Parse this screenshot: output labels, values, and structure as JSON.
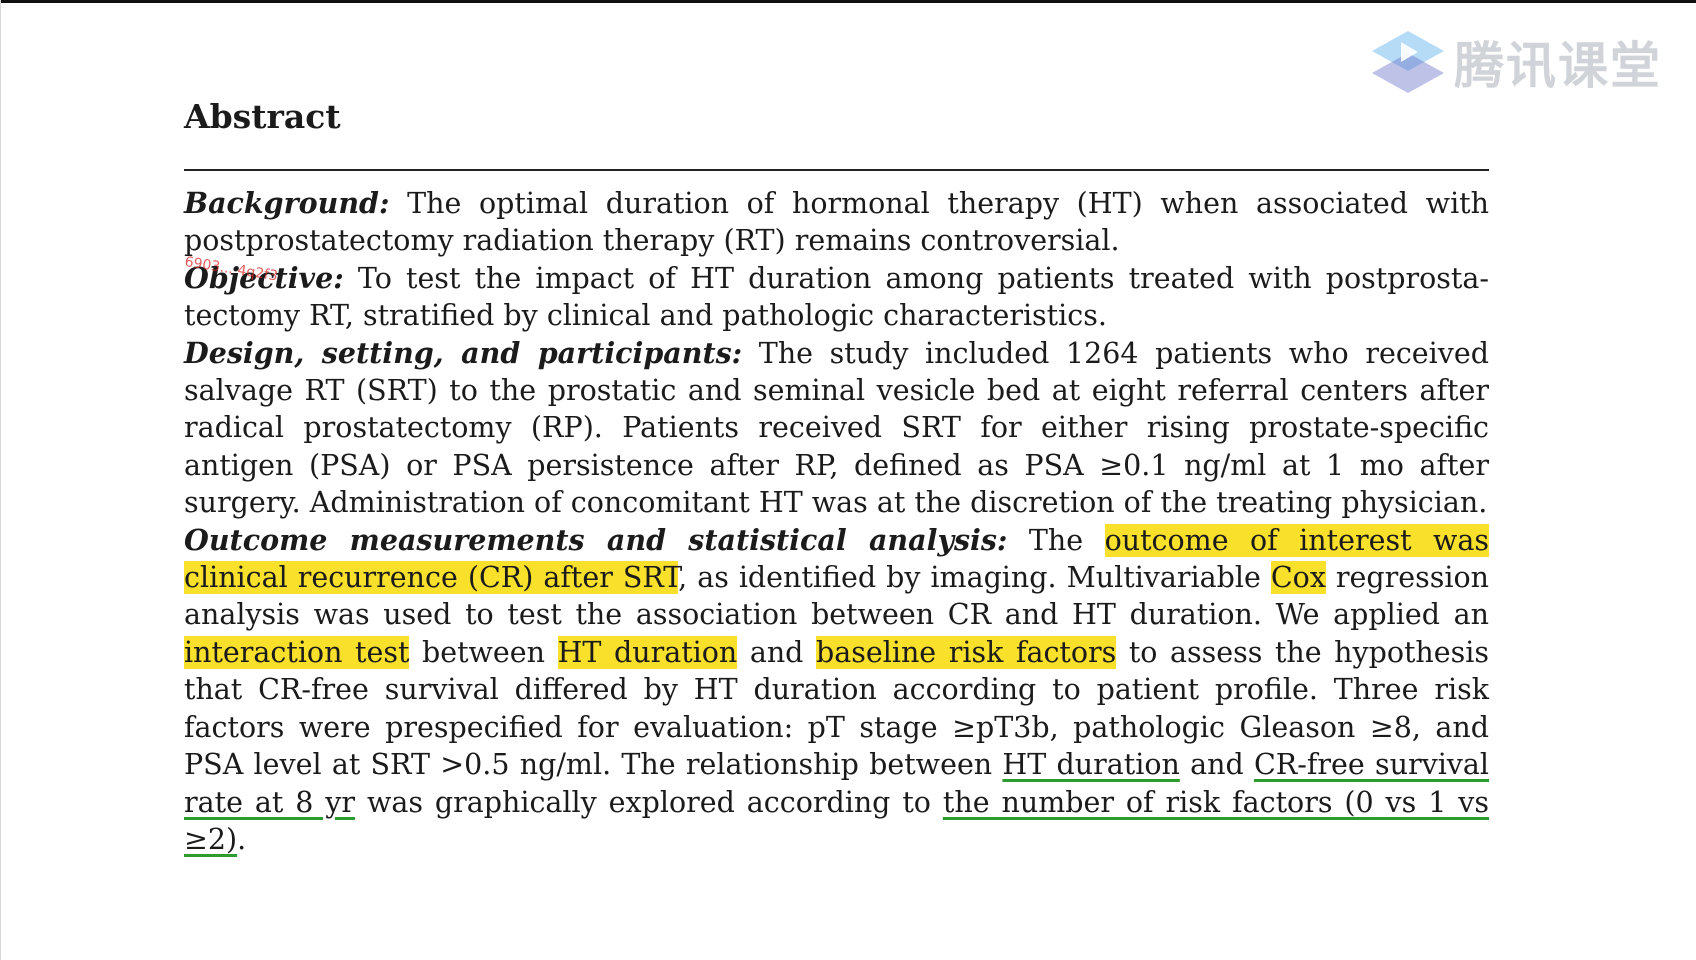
{
  "watermark": {
    "logo_icon": "play-triangle-icon",
    "brand_text": "腾讯课堂"
  },
  "section_title": "Abstract",
  "paragraphs": {
    "background": {
      "lead": "Background:",
      "text": " The optimal duration of hormonal therapy (HT) when associated with postprostatectomy radiation therapy (RT) remains controversial."
    },
    "objective": {
      "lead": "Objective:",
      "text": " To test the impact of HT duration among patients treated with postprosta­tectomy RT, stratified by clinical and pathologic characteristics."
    },
    "design": {
      "lead": "Design, setting, and participants:",
      "text": " The study included 1264 patients who received salvage RT (SRT) to the prostatic and seminal vesicle bed at eight referral centers after radical prostatectomy (RP). Patients received SRT for either rising prostate-specific antigen (PSA) or PSA persistence after RP, defined as PSA ≥0.1 ng/ml at 1 mo after surgery. Administration of concomitant HT was at the discretion of the treating physician."
    },
    "outcome": {
      "lead": "Outcome measurements and statistical analysis:",
      "t1": " The ",
      "h1": "outcome of interest was clinical recurrence (CR) after SRT",
      "t2": ", as identified by imaging. Multivariable ",
      "h2": "Cox",
      "t3": " regression analysis was used to test the association between CR and HT duration. We applied an ",
      "h3": "interaction test",
      "t4": " between ",
      "h4": "HT duration",
      "t5": " and ",
      "h5": "baseline risk factors",
      "t6": " to assess the hypothesis that CR-free survival differed by HT duration according to patient profile. Three risk factors were prespecified for evaluation: pT stage ≥pT3b, pathologic Gleason ≥8, and PSA level at SRT >0.5 ng/ml. The relationship between ",
      "u1": "HT duration",
      "t7": " and ",
      "u2": "CR-free survival rate at 8 yr",
      "t8": " was graphically explored according to ",
      "u3": "the number of risk factors (0 vs 1 vs ≥2)",
      "t9": "."
    }
  },
  "stamp_text": "6903... 4q2f3",
  "colors": {
    "highlight": "#f9e02a",
    "underline": "#2e9b2e",
    "stamp": "#dc2828"
  }
}
